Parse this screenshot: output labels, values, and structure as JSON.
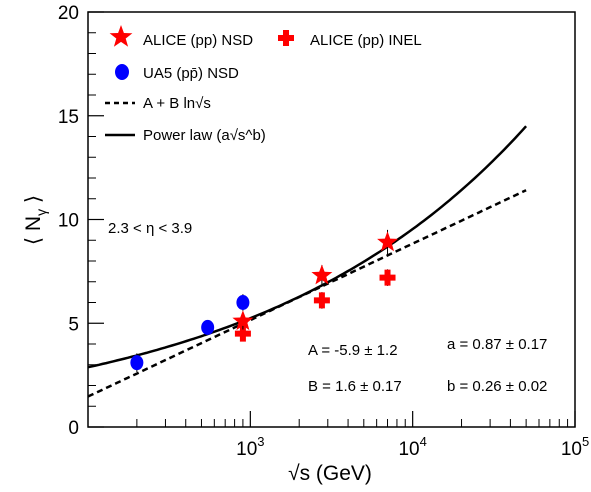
{
  "chart_data": {
    "type": "scatter",
    "x_scale": "log",
    "xlim": [
      100,
      100000
    ],
    "ylim": [
      0,
      20
    ],
    "xlabel": "√s (GeV)",
    "ylabel": "⟨ N_γ ⟩",
    "x_ticks": [
      {
        "value": 1000,
        "base": "10",
        "exp": "3"
      },
      {
        "value": 10000,
        "base": "10",
        "exp": "4"
      },
      {
        "value": 100000,
        "base": "10",
        "exp": "5"
      }
    ],
    "y_ticks": [
      "0",
      "5",
      "10",
      "15",
      "20"
    ],
    "legend": {
      "alice_nsd": "ALICE (pp) NSD",
      "alice_inel": "ALICE (pp) INEL",
      "ua5": "UA5 (pp̄) NSD",
      "log_fit": "A + B ln√s",
      "power_law": "Power law (a√s^b)"
    },
    "annotations": {
      "eta_range": "2.3 < η < 3.9",
      "fit_A": "A = -5.9 ± 1.2",
      "fit_B": "B = 1.6 ± 0.17",
      "fit_a": "a = 0.87 ± 0.17",
      "fit_b": "b = 0.26 ± 0.02"
    },
    "series": [
      {
        "name": "ALICE (pp) NSD",
        "marker": "star",
        "color": "#ff0000",
        "points": [
          {
            "x": 900,
            "y": 5.1,
            "err": 0.4
          },
          {
            "x": 2760,
            "y": 7.3,
            "err": 0.5
          },
          {
            "x": 7000,
            "y": 8.9,
            "err": 0.6
          }
        ]
      },
      {
        "name": "ALICE (pp) INEL",
        "marker": "cross",
        "color": "#ff0000",
        "points": [
          {
            "x": 900,
            "y": 4.5,
            "err": 0.3
          },
          {
            "x": 2760,
            "y": 6.1,
            "err": 0.4
          },
          {
            "x": 7000,
            "y": 7.2,
            "err": 0.4
          }
        ]
      },
      {
        "name": "UA5 (pp̄) NSD",
        "marker": "circle",
        "color": "#0000ff",
        "points": [
          {
            "x": 200,
            "y": 3.1,
            "err": 0.45
          },
          {
            "x": 546,
            "y": 4.8,
            "err": 0.3
          },
          {
            "x": 900,
            "y": 6.0,
            "err": 0.4
          }
        ]
      }
    ],
    "curves": [
      {
        "name": "A + B ln√s",
        "style": "dashed",
        "A": -5.9,
        "B": 1.6,
        "x_range": [
          100,
          50000
        ]
      },
      {
        "name": "Power law (a√s^b)",
        "style": "solid",
        "a": 0.87,
        "b": 0.26,
        "x_range": [
          100,
          50000
        ]
      }
    ]
  }
}
